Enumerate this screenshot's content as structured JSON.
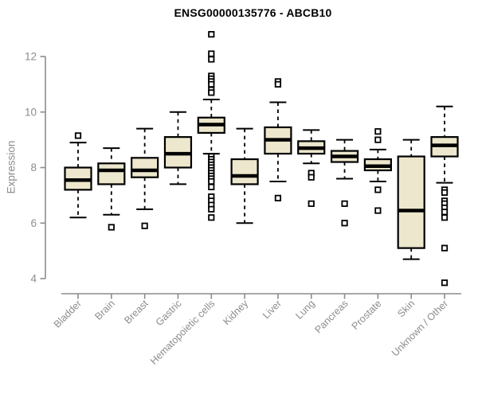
{
  "title": "ENSG00000135776 - ABCB10",
  "colors": {
    "background": "#ffffff",
    "box_fill": "#ece7cd",
    "box_border": "#000000",
    "median_line": "#000000",
    "axis": "#8c8c8c",
    "tick_text": "#8c8c8c",
    "title_text": "#000000"
  },
  "chart_data": {
    "type": "boxplot",
    "title": "ENSG00000135776 - ABCB10",
    "xlabel": "",
    "ylabel": "Expression",
    "ylim": [
      3.6,
      13.0
    ],
    "yticks": [
      4,
      6,
      8,
      10,
      12
    ],
    "grid": false,
    "legend": "none",
    "categories": [
      "Bladder",
      "Brain",
      "Breast",
      "Gastric",
      "Hematopoietic cells",
      "Kidney",
      "Liver",
      "Lung",
      "Pancreas",
      "Prostate",
      "Skin",
      "Unknown / Other"
    ],
    "boxes": [
      {
        "category": "Bladder",
        "whisker_low": 6.2,
        "q1": 7.2,
        "median": 7.55,
        "q3": 8.0,
        "whisker_high": 8.9,
        "outliers": [
          9.15
        ]
      },
      {
        "category": "Brain",
        "whisker_low": 6.3,
        "q1": 7.4,
        "median": 7.9,
        "q3": 8.15,
        "whisker_high": 8.7,
        "outliers": [
          5.85
        ]
      },
      {
        "category": "Breast",
        "whisker_low": 6.5,
        "q1": 7.65,
        "median": 7.9,
        "q3": 8.35,
        "whisker_high": 9.4,
        "outliers": [
          5.9
        ]
      },
      {
        "category": "Gastric",
        "whisker_low": 7.4,
        "q1": 8.0,
        "median": 8.5,
        "q3": 9.1,
        "whisker_high": 10.0,
        "outliers": []
      },
      {
        "category": "Hematopoietic cells",
        "whisker_low": 8.5,
        "q1": 9.25,
        "median": 9.55,
        "q3": 9.8,
        "whisker_high": 10.45,
        "outliers": [
          12.8,
          12.1,
          11.9,
          11.3,
          11.2,
          11.1,
          11.0,
          10.8,
          10.7,
          8.4,
          8.3,
          8.2,
          8.1,
          8.0,
          7.9,
          7.8,
          7.7,
          7.6,
          7.5,
          7.3,
          6.95,
          6.8,
          6.65,
          6.5,
          6.2
        ]
      },
      {
        "category": "Kidney",
        "whisker_low": 6.0,
        "q1": 7.4,
        "median": 7.7,
        "q3": 8.3,
        "whisker_high": 9.4,
        "outliers": []
      },
      {
        "category": "Liver",
        "whisker_low": 7.5,
        "q1": 8.5,
        "median": 9.0,
        "q3": 9.45,
        "whisker_high": 10.35,
        "outliers": [
          11.1,
          11.0,
          6.9
        ]
      },
      {
        "category": "Lung",
        "whisker_low": 8.15,
        "q1": 8.5,
        "median": 8.7,
        "q3": 8.95,
        "whisker_high": 9.35,
        "outliers": [
          7.8,
          7.65,
          6.7
        ]
      },
      {
        "category": "Pancreas",
        "whisker_low": 7.6,
        "q1": 8.2,
        "median": 8.4,
        "q3": 8.6,
        "whisker_high": 9.0,
        "outliers": [
          6.7,
          6.0
        ]
      },
      {
        "category": "Prostate",
        "whisker_low": 7.5,
        "q1": 7.9,
        "median": 8.05,
        "q3": 8.3,
        "whisker_high": 8.65,
        "outliers": [
          9.3,
          9.0,
          7.2,
          6.45
        ]
      },
      {
        "category": "Skin",
        "whisker_low": 4.7,
        "q1": 5.1,
        "median": 6.45,
        "q3": 8.4,
        "whisker_high": 9.0,
        "outliers": []
      },
      {
        "category": "Unknown / Other",
        "whisker_low": 7.45,
        "q1": 8.4,
        "median": 8.8,
        "q3": 9.1,
        "whisker_high": 10.2,
        "outliers": [
          7.2,
          7.1,
          6.8,
          6.7,
          6.55,
          6.4,
          6.2,
          5.1,
          3.85
        ]
      }
    ]
  }
}
